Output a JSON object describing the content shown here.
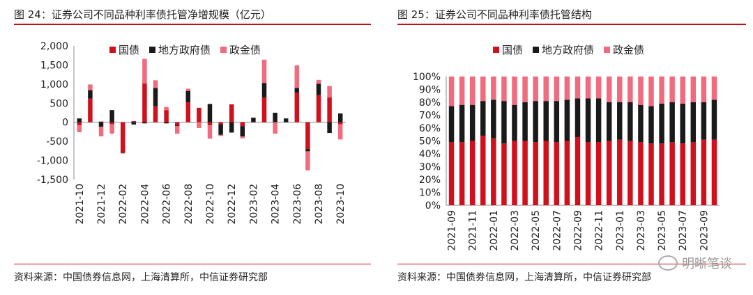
{
  "left": {
    "title": "图 24：证券公司不同品种利率债托管净增规模（亿元）",
    "source": "资料来源：中国债券信息网，上海清算所，中信证券研究部"
  },
  "right": {
    "title": "图 25：证券公司不同品种利率债托管结构",
    "source": "资料来源：中国债券信息网，上海清算所，中信证券研究部"
  },
  "watermark": {
    "label": "明晰笔谈",
    "icon": "wechat-icon"
  },
  "colors": {
    "guozhai": "#d0101d",
    "difang": "#1a1a1a",
    "zhengjin": "#f06b7d",
    "rule": "#c0101a"
  },
  "chart_data": [
    {
      "type": "bar",
      "stacked": true,
      "ylim": [
        -1500,
        2000
      ],
      "yticks": [
        -1500,
        -1000,
        -500,
        0,
        500,
        1000,
        1500,
        2000
      ],
      "ytick_labels": [
        "-1,500",
        "-1,000",
        "-500",
        "0",
        "500",
        "1,000",
        "1,500",
        "2,000"
      ],
      "legend_position": "top",
      "categories": [
        "2021-10",
        "2021-11",
        "2021-12",
        "2022-01",
        "2022-02",
        "2022-03",
        "2022-04",
        "2022-05",
        "2022-06",
        "2022-07",
        "2022-08",
        "2022-09",
        "2022-10",
        "2022-11",
        "2022-12",
        "2023-01",
        "2023-02",
        "2023-03",
        "2023-04",
        "2023-05",
        "2023-06",
        "2023-07",
        "2023-08",
        "2023-09",
        "2023-10"
      ],
      "xtick_labels": [
        "2021-10",
        "2021-12",
        "2022-02",
        "2022-04",
        "2022-06",
        "2022-08",
        "2022-10",
        "2022-12",
        "2023-02",
        "2023-04",
        "2023-06",
        "2023-08",
        "2023-10"
      ],
      "series": [
        {
          "name": "国债",
          "values": [
            -80,
            620,
            20,
            -50,
            -780,
            30,
            1020,
            420,
            320,
            -80,
            520,
            380,
            -80,
            -50,
            470,
            -100,
            0,
            650,
            0,
            0,
            780,
            -700,
            710,
            650,
            -50
          ]
        },
        {
          "name": "地方政府债",
          "values": [
            100,
            220,
            -120,
            320,
            -20,
            -60,
            -30,
            480,
            -30,
            -20,
            300,
            0,
            480,
            -280,
            -270,
            -270,
            120,
            380,
            250,
            100,
            120,
            -60,
            300,
            -280,
            230
          ]
        },
        {
          "name": "政金债",
          "values": [
            -180,
            150,
            -250,
            -250,
            -20,
            0,
            640,
            200,
            80,
            -200,
            60,
            -150,
            -350,
            -30,
            0,
            -50,
            0,
            610,
            -300,
            0,
            590,
            -500,
            100,
            300,
            -400
          ]
        }
      ]
    },
    {
      "type": "bar",
      "stacked": true,
      "ylim": [
        0,
        100
      ],
      "ytick_labels": [
        "0%",
        "10%",
        "20%",
        "30%",
        "40%",
        "50%",
        "60%",
        "70%",
        "80%",
        "90%",
        "100%"
      ],
      "legend_position": "top",
      "categories": [
        "2021-09",
        "2021-10",
        "2021-11",
        "2021-12",
        "2022-01",
        "2022-02",
        "2022-03",
        "2022-04",
        "2022-05",
        "2022-06",
        "2022-07",
        "2022-08",
        "2022-09",
        "2022-10",
        "2022-11",
        "2022-12",
        "2023-01",
        "2023-02",
        "2023-03",
        "2023-04",
        "2023-05",
        "2023-06",
        "2023-07",
        "2023-08",
        "2023-09",
        "2023-10"
      ],
      "xtick_labels": [
        "2021-09",
        "2021-11",
        "2022-01",
        "2022-03",
        "2022-05",
        "2022-07",
        "2022-09",
        "2022-11",
        "2023-01",
        "2023-03",
        "2023-05",
        "2023-07",
        "2023-09"
      ],
      "series": [
        {
          "name": "国债",
          "values": [
            49,
            49,
            50,
            54,
            52,
            48,
            50,
            50,
            49,
            50,
            49,
            50,
            53,
            49,
            49,
            50,
            51,
            50,
            49,
            48,
            48,
            49,
            48,
            49,
            51,
            51
          ]
        },
        {
          "name": "地方政府债",
          "values": [
            28,
            29,
            28,
            27,
            30,
            33,
            28,
            30,
            32,
            31,
            32,
            32,
            30,
            34,
            34,
            30,
            29,
            30,
            29,
            29,
            31,
            31,
            31,
            31,
            29,
            31
          ]
        },
        {
          "name": "政金债",
          "values": [
            23,
            22,
            22,
            19,
            18,
            19,
            22,
            20,
            19,
            19,
            19,
            18,
            17,
            17,
            17,
            20,
            20,
            20,
            22,
            23,
            21,
            20,
            21,
            20,
            20,
            18
          ]
        }
      ]
    }
  ]
}
